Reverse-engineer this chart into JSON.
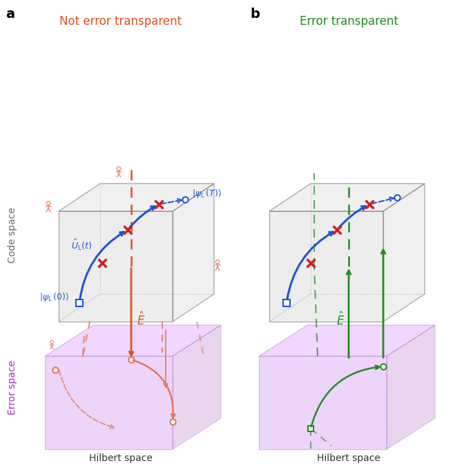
{
  "panel_a_title": "Not error transparent",
  "panel_b_title": "Error transparent",
  "panel_a_color": "#E05020",
  "panel_b_color": "#228B22",
  "blue_color": "#2255CC",
  "red_marker_color": "#CC2222",
  "orange_color": "#D4603A",
  "green_color": "#228B22",
  "purple_face": "#D8A0E8",
  "code_space_label": "Code space",
  "error_space_label": "Error space",
  "hilbert_label": "Hilbert space",
  "psi0_label": "|\\psi_L\\,(0)\\rangle",
  "psiT_label": "|\\psi_L\\,(T)\\rangle",
  "UL_label": "\\hat{U}_L(t)",
  "E_label": "\\hat{E}",
  "bg_color": "#FFFFFF"
}
